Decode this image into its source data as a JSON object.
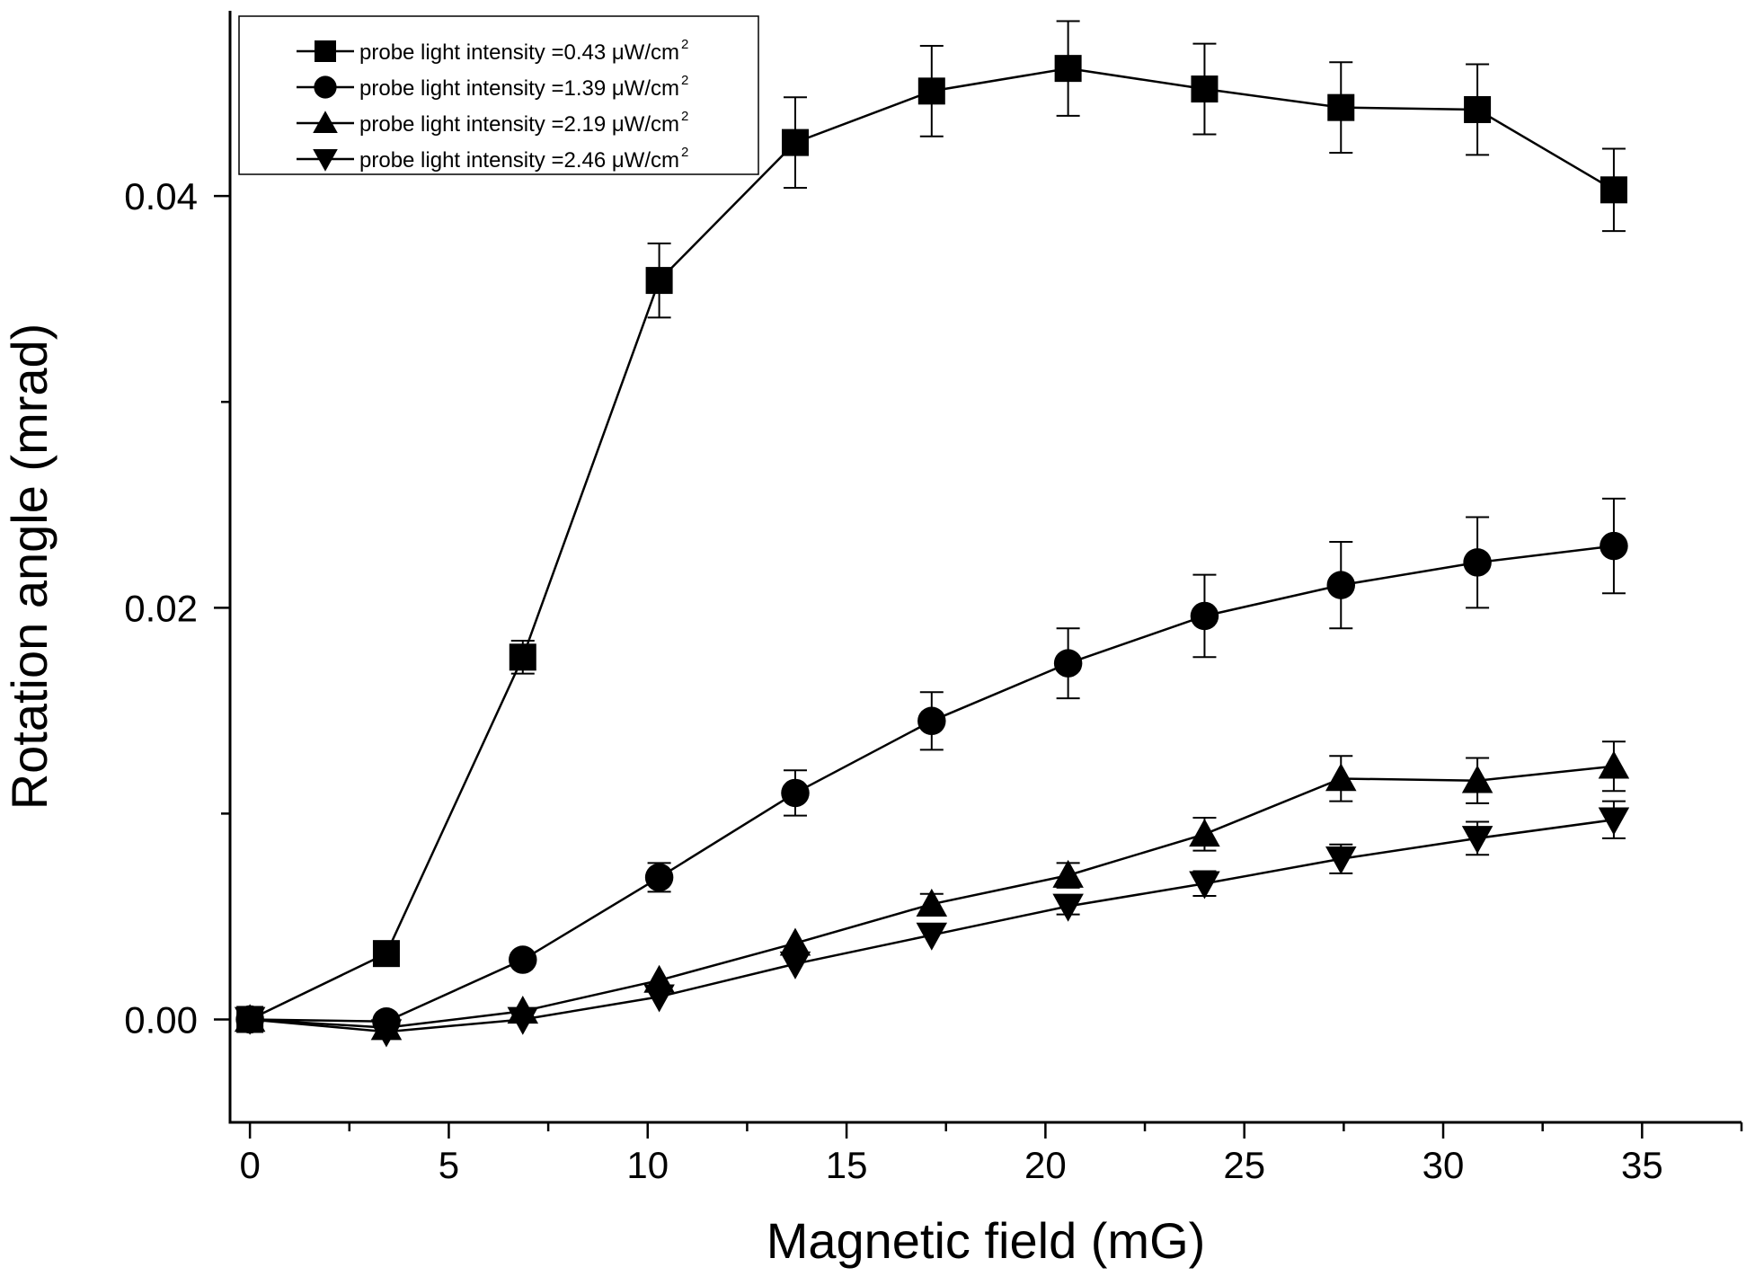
{
  "chart_data": {
    "type": "scatter",
    "title": "",
    "xlabel": "Magnetic field (mG)",
    "ylabel": "Rotation angle (mrad)",
    "xlim": [
      -0.5,
      37.5
    ],
    "ylim": [
      -0.005,
      0.049
    ],
    "x_ticks": [
      0,
      5,
      10,
      15,
      20,
      25,
      30,
      35
    ],
    "x_tick_labels": [
      "0",
      "5",
      "10",
      "15",
      "20",
      "25",
      "30",
      "35"
    ],
    "y_ticks": [
      0.0,
      0.02,
      0.04
    ],
    "y_tick_labels": [
      "0.00",
      "0.02",
      "0.04"
    ],
    "grid": false,
    "legend_position": "top-left",
    "x": [
      0,
      3.43,
      6.86,
      10.29,
      13.71,
      17.14,
      20.57,
      24.0,
      27.43,
      30.86,
      34.29
    ],
    "series": [
      {
        "name": "probe light intensity =0.43 μW/cm",
        "name_superscript": "2",
        "marker": "square",
        "values": [
          0.0,
          0.0032,
          0.0176,
          0.0359,
          0.0426,
          0.0451,
          0.0462,
          0.0452,
          0.0443,
          0.0442,
          0.0403
        ],
        "errors": [
          0.0,
          0.0,
          0.0008,
          0.0018,
          0.0022,
          0.0022,
          0.0023,
          0.0022,
          0.0022,
          0.0022,
          0.002
        ]
      },
      {
        "name": "probe light intensity =1.39 μW/cm",
        "name_superscript": "2",
        "marker": "circle",
        "values": [
          0.0,
          -0.0001,
          0.0029,
          0.0069,
          0.011,
          0.0145,
          0.0173,
          0.0196,
          0.0211,
          0.0222,
          0.023
        ],
        "errors": [
          0.0,
          0.0,
          0.0,
          0.0007,
          0.0011,
          0.0014,
          0.0017,
          0.002,
          0.0021,
          0.0022,
          0.0023
        ]
      },
      {
        "name": "probe light intensity =2.19 μW/cm",
        "name_superscript": "2",
        "marker": "triangle-up",
        "values": [
          0.0,
          -0.0004,
          0.0004,
          0.0019,
          0.0037,
          0.0056,
          0.007,
          0.009,
          0.0117,
          0.0116,
          0.0123
        ],
        "errors": [
          0.0,
          0.0,
          0.0,
          0.0,
          0.0,
          0.0005,
          0.0006,
          0.0008,
          0.0011,
          0.0011,
          0.0012
        ]
      },
      {
        "name": "probe light intensity =2.46 μW/cm",
        "name_superscript": "2",
        "marker": "triangle-down",
        "values": [
          0.0,
          -0.0006,
          0.0,
          0.0011,
          0.0027,
          0.0041,
          0.0055,
          0.0066,
          0.0078,
          0.0088,
          0.0097
        ],
        "errors": [
          0.0,
          0.0,
          0.0,
          0.0,
          0.0,
          0.0,
          0.0004,
          0.0006,
          0.0007,
          0.0008,
          0.0009
        ]
      }
    ]
  }
}
